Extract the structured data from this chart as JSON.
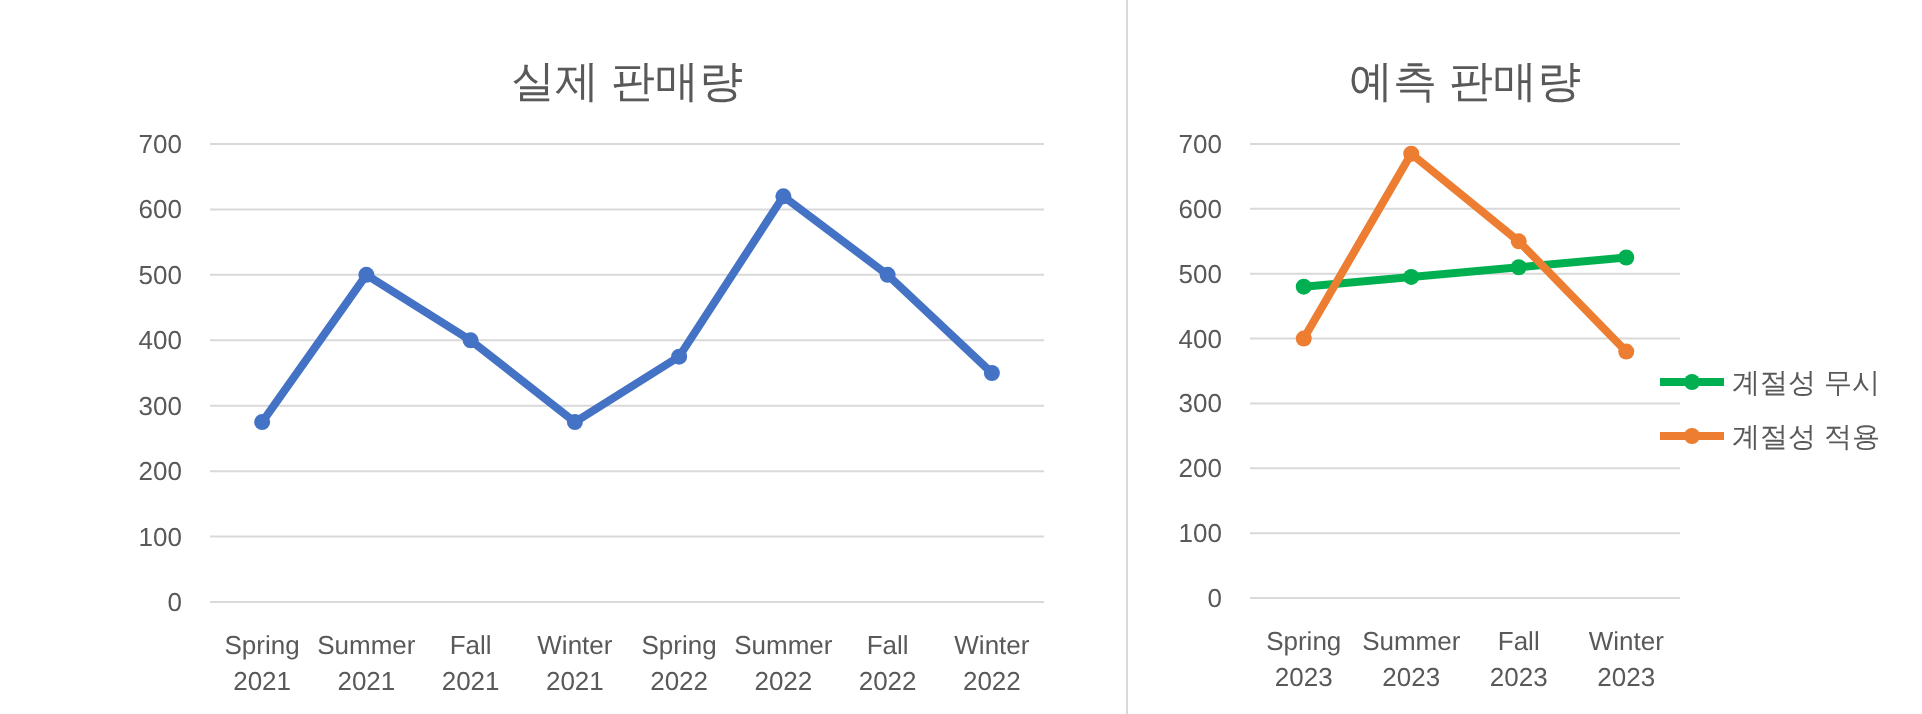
{
  "chart_data": [
    {
      "type": "line",
      "title": "실제 판매량",
      "categories": [
        "Spring 2021",
        "Summer 2021",
        "Fall 2021",
        "Winter 2021",
        "Spring 2022",
        "Summer 2022",
        "Fall 2022",
        "Winter 2022"
      ],
      "series": [
        {
          "color": "#4472c4",
          "values": [
            275,
            500,
            400,
            275,
            375,
            620,
            500,
            350
          ]
        }
      ],
      "ylim": [
        0,
        700
      ],
      "yticks": [
        0,
        100,
        200,
        300,
        400,
        500,
        600,
        700
      ],
      "grid": "y",
      "marker": "circle",
      "legend": false
    },
    {
      "type": "line",
      "title": "예측 판매량",
      "categories": [
        "Spring 2023",
        "Summer 2023",
        "Fall 2023",
        "Winter 2023"
      ],
      "series": [
        {
          "name": "계절성 무시",
          "color": "#00b050",
          "values": [
            480,
            495,
            510,
            525
          ]
        },
        {
          "name": "계절성 적용",
          "color": "#ed7d31",
          "values": [
            400,
            685,
            550,
            380
          ]
        }
      ],
      "ylim": [
        0,
        700
      ],
      "yticks": [
        0,
        100,
        200,
        300,
        400,
        500,
        600,
        700
      ],
      "grid": "y",
      "marker": "circle",
      "legend": "right"
    }
  ]
}
